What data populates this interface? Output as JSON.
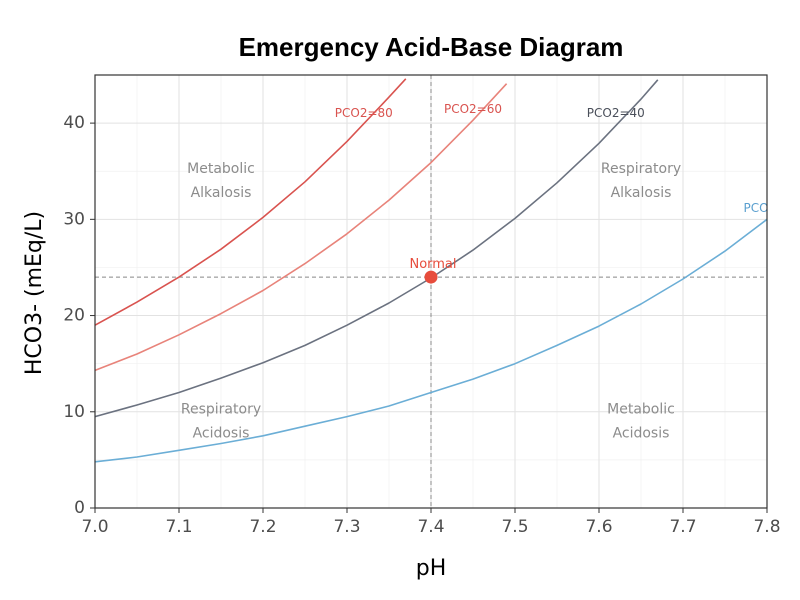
{
  "chart_data": {
    "type": "line",
    "title": "Emergency Acid-Base Diagram",
    "xlabel": "pH",
    "ylabel": "HCO3- (mEq/L)",
    "xlim": [
      7.0,
      7.8
    ],
    "ylim": [
      0,
      45
    ],
    "x_ticks": [
      "7.0",
      "7.1",
      "7.2",
      "7.3",
      "7.4",
      "7.5",
      "7.6",
      "7.7",
      "7.8"
    ],
    "y_ticks": [
      "0",
      "10",
      "20",
      "30",
      "40"
    ],
    "grid": true,
    "reference_lines": {
      "x": 7.4,
      "y": 24
    },
    "series": [
      {
        "name": "PCO2=80",
        "color": "#d9534f",
        "points": [
          [
            7.0,
            19.0
          ],
          [
            7.05,
            21.4
          ],
          [
            7.1,
            24.0
          ],
          [
            7.15,
            26.9
          ],
          [
            7.2,
            30.2
          ],
          [
            7.25,
            33.9
          ],
          [
            7.3,
            38.1
          ],
          [
            7.35,
            42.7
          ],
          [
            7.37,
            44.6
          ]
        ]
      },
      {
        "name": "PCO2=60",
        "color": "#e8837a",
        "points": [
          [
            7.0,
            14.3
          ],
          [
            7.05,
            16.0
          ],
          [
            7.1,
            18.0
          ],
          [
            7.15,
            20.2
          ],
          [
            7.2,
            22.6
          ],
          [
            7.25,
            25.4
          ],
          [
            7.3,
            28.5
          ],
          [
            7.35,
            32.0
          ],
          [
            7.4,
            35.9
          ],
          [
            7.45,
            40.3
          ],
          [
            7.49,
            44.1
          ]
        ]
      },
      {
        "name": "PCO2=40",
        "color": "#6b7280",
        "points": [
          [
            7.0,
            9.5
          ],
          [
            7.05,
            10.7
          ],
          [
            7.1,
            12.0
          ],
          [
            7.15,
            13.5
          ],
          [
            7.2,
            15.1
          ],
          [
            7.25,
            16.9
          ],
          [
            7.3,
            19.0
          ],
          [
            7.35,
            21.3
          ],
          [
            7.4,
            23.9
          ],
          [
            7.45,
            26.8
          ],
          [
            7.5,
            30.1
          ],
          [
            7.55,
            33.8
          ],
          [
            7.6,
            37.9
          ],
          [
            7.65,
            42.5
          ],
          [
            7.67,
            44.5
          ]
        ]
      },
      {
        "name": "PCO",
        "color": "#6baed6",
        "points": [
          [
            7.0,
            4.8
          ],
          [
            7.05,
            5.3
          ],
          [
            7.1,
            6.0
          ],
          [
            7.15,
            6.7
          ],
          [
            7.2,
            7.5
          ],
          [
            7.25,
            8.5
          ],
          [
            7.3,
            9.5
          ],
          [
            7.35,
            10.6
          ],
          [
            7.4,
            12.0
          ],
          [
            7.45,
            13.4
          ],
          [
            7.5,
            15.0
          ],
          [
            7.55,
            16.9
          ],
          [
            7.6,
            18.9
          ],
          [
            7.65,
            21.2
          ],
          [
            7.7,
            23.8
          ],
          [
            7.75,
            26.7
          ],
          [
            7.8,
            30.0
          ]
        ]
      }
    ],
    "curve_labels": [
      {
        "text": "PCO2=80",
        "x": 7.32,
        "y": 41.0,
        "color": "#d9534f"
      },
      {
        "text": "PCO2=60",
        "x": 7.45,
        "y": 41.4,
        "color": "#d9534f"
      },
      {
        "text": "PCO2=40",
        "x": 7.62,
        "y": 41.0,
        "color": "#4a4f5a"
      },
      {
        "text": "PCO",
        "x": 7.787,
        "y": 31.1,
        "color": "#5a9fcf"
      }
    ],
    "region_labels": [
      {
        "lines": [
          "Metabolic",
          "Alkalosis"
        ],
        "x": 7.15,
        "y": 34.8
      },
      {
        "lines": [
          "Respiratory",
          "Alkalosis"
        ],
        "x": 7.65,
        "y": 34.8
      },
      {
        "lines": [
          "Respiratory",
          "Acidosis"
        ],
        "x": 7.15,
        "y": 9.8
      },
      {
        "lines": [
          "Metabolic",
          "Acidosis"
        ],
        "x": 7.65,
        "y": 9.8
      }
    ],
    "point": {
      "label": "Normal",
      "x": 7.4,
      "y": 24,
      "color": "#e74c3c"
    }
  }
}
